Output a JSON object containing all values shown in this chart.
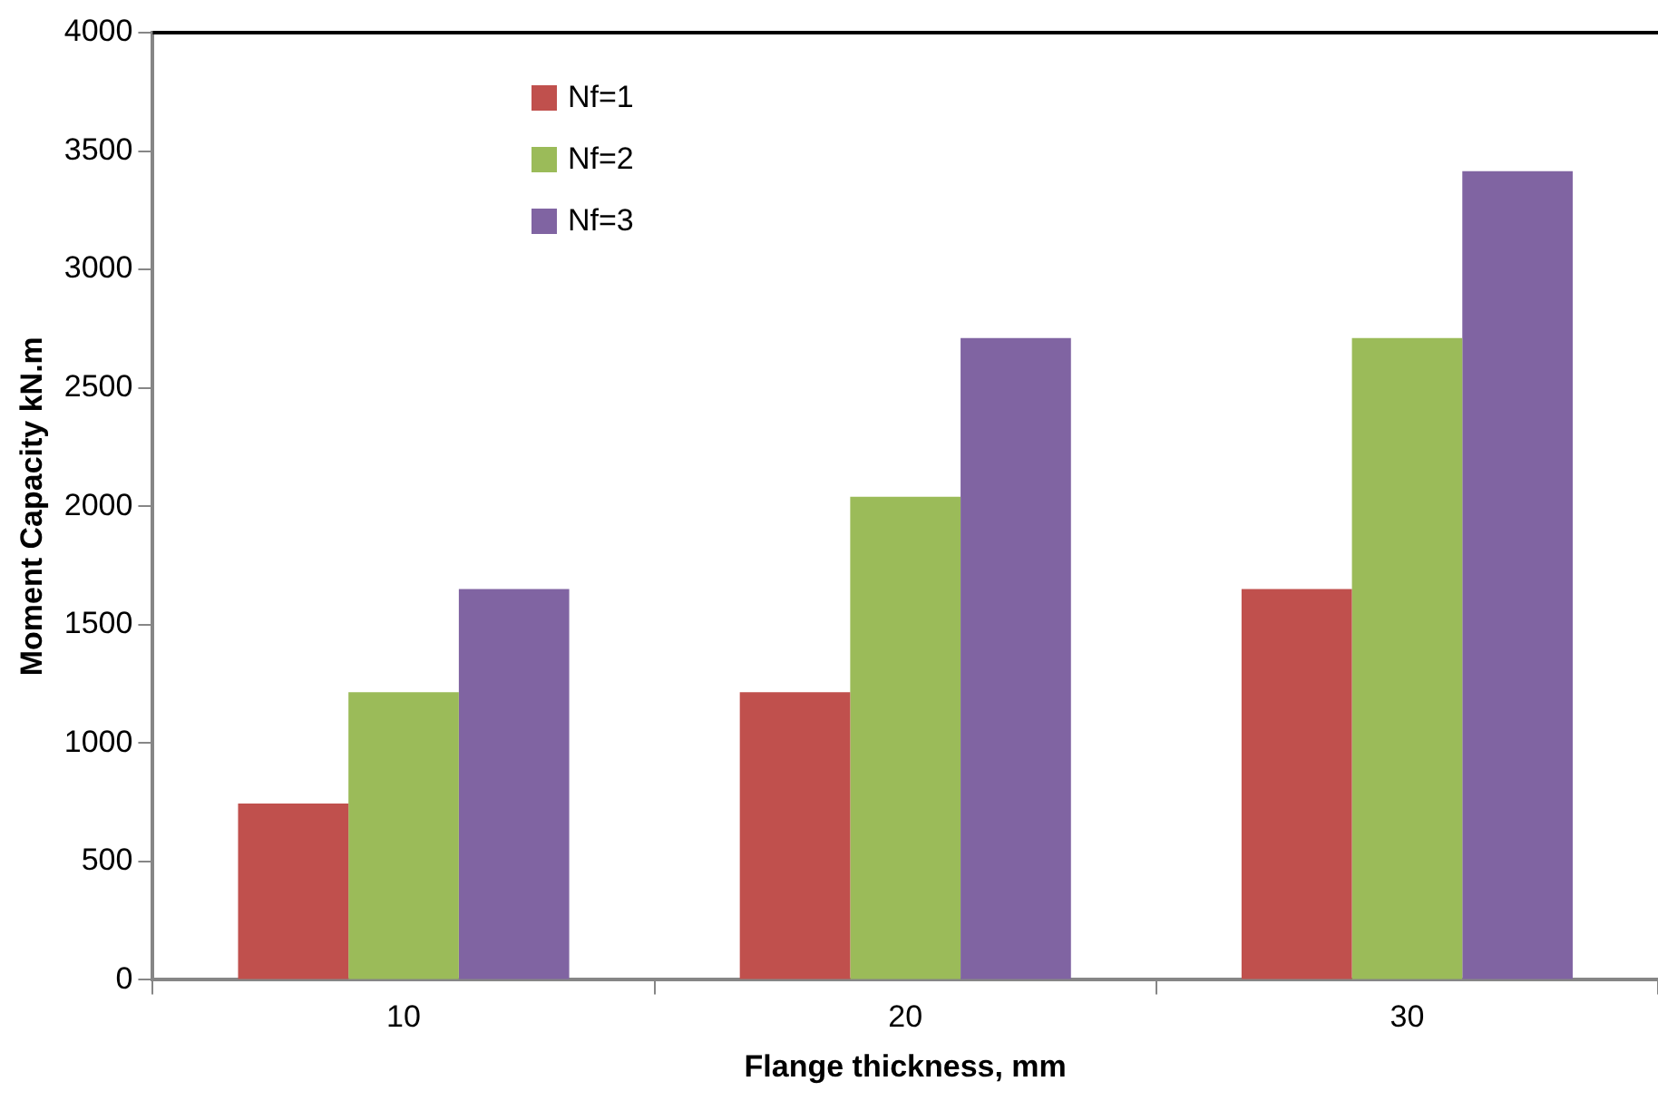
{
  "chart_data": {
    "type": "bar",
    "xlabel": "Flange thickness, mm",
    "ylabel": "Moment Capacity kN.m",
    "categories": [
      "10",
      "20",
      "30"
    ],
    "series": [
      {
        "name": "Nf=1",
        "color": "#c0504d",
        "values": [
          745,
          1215,
          1650
        ]
      },
      {
        "name": "Nf=2",
        "color": "#9bbb59",
        "values": [
          1215,
          2040,
          2710
        ]
      },
      {
        "name": "Nf=3",
        "color": "#8064a2",
        "values": [
          1650,
          2710,
          3415
        ]
      }
    ],
    "ylim": [
      0,
      4000
    ],
    "yticks": [
      0,
      500,
      1000,
      1500,
      2000,
      2500,
      3000,
      3500,
      4000
    ],
    "grid": false,
    "legend": "top left"
  }
}
